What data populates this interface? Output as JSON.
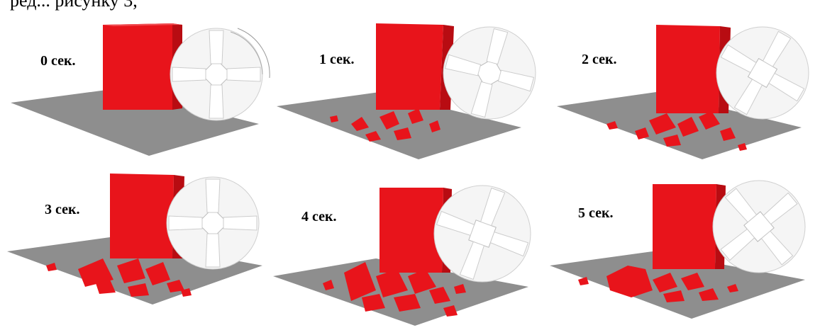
{
  "top_text": "ред... рисунку 3,",
  "panels": [
    {
      "label": "0  сек."
    },
    {
      "label": "1 сек."
    },
    {
      "label": "2 сек."
    },
    {
      "label": "3 сек."
    },
    {
      "label": "4 сек."
    },
    {
      "label": "5 сек."
    }
  ],
  "colors": {
    "block": "#e8141b",
    "block_dark": "#b80c12",
    "floor": "#8e8e8e",
    "wheel": "#f3f3f3"
  },
  "debris_level": [
    0,
    0.35,
    0.55,
    0.7,
    0.85,
    0.8
  ]
}
